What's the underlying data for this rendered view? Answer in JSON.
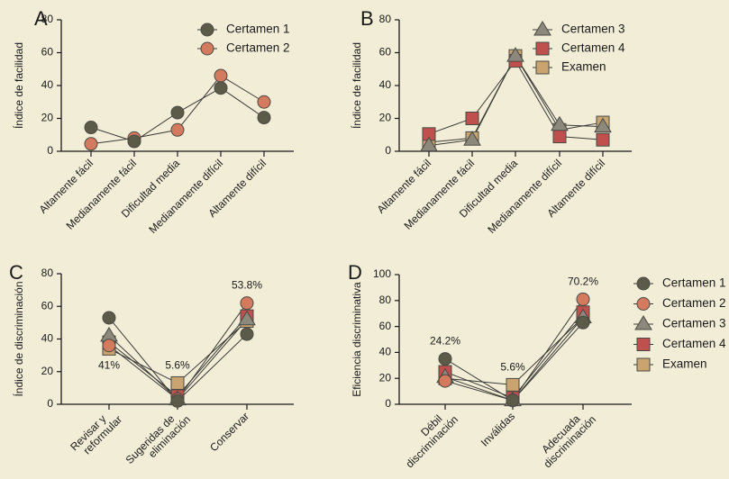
{
  "colors": {
    "background": "#F2EDD7",
    "axis": "#1a1a1a",
    "line": "#3a3a36",
    "Certamen 1": "#5C5A48",
    "Certamen 2": "#D47A5E",
    "Certamen 3": "#8C887C",
    "Certamen 4": "#C0504D",
    "Examen": "#C9A46E"
  },
  "markers": {
    "Certamen 1": "circle",
    "Certamen 2": "circle",
    "Certamen 3": "triangle",
    "Certamen 4": "square",
    "Examen": "square"
  },
  "chart_data": [
    {
      "panel": "A",
      "type": "line",
      "title": "",
      "xlabel": "",
      "ylabel": "Índice de facilidad",
      "ylim": [
        0,
        80
      ],
      "yticks": [
        0,
        20,
        40,
        60,
        80
      ],
      "grid": false,
      "legend": "top-right",
      "categories": [
        "Altamente fácil",
        "Medianamente fácil",
        "Dificultad media",
        "Medianamente difícil",
        "Altamente difícil"
      ],
      "series": [
        {
          "name": "Certamen 1",
          "values": [
            14.5,
            6,
            23.5,
            38.5,
            20.5
          ]
        },
        {
          "name": "Certamen 2",
          "values": [
            4.5,
            8,
            13,
            46,
            30
          ]
        }
      ],
      "annotations": []
    },
    {
      "panel": "B",
      "type": "line",
      "title": "",
      "xlabel": "",
      "ylabel": "Índice de facilidad",
      "ylim": [
        0,
        80
      ],
      "yticks": [
        0,
        20,
        40,
        60,
        80
      ],
      "grid": false,
      "legend": "top-right",
      "categories": [
        "Altamente fácil",
        "Medianamente fácil",
        "Dificultad media",
        "Medianamente difícil",
        "Altamente difícil"
      ],
      "series": [
        {
          "name": "Certamen 3",
          "values": [
            3.5,
            7,
            58,
            16,
            15
          ]
        },
        {
          "name": "Certamen 4",
          "values": [
            10.5,
            20,
            55,
            9,
            7
          ]
        },
        {
          "name": "Examen",
          "values": [
            5.5,
            8,
            58,
            13,
            17.5
          ]
        }
      ],
      "annotations": []
    },
    {
      "panel": "C",
      "type": "line",
      "title": "",
      "xlabel": "",
      "ylabel": "Índice de discriminación",
      "ylim": [
        0,
        80
      ],
      "yticks": [
        0,
        20,
        40,
        60,
        80
      ],
      "grid": false,
      "legend": "none",
      "categories": [
        "Revisar y\nreformular",
        "Sugeridas de\neliminación",
        "Conservar"
      ],
      "series": [
        {
          "name": "Certamen 1",
          "values": [
            53,
            2,
            43
          ]
        },
        {
          "name": "Certamen 2",
          "values": [
            36,
            3,
            62
          ]
        },
        {
          "name": "Certamen 3",
          "values": [
            42,
            3,
            52
          ]
        },
        {
          "name": "Certamen 4",
          "values": [
            38,
            5,
            54
          ]
        },
        {
          "name": "Examen",
          "values": [
            34,
            13,
            51
          ]
        }
      ],
      "annotations": [
        {
          "category": 0,
          "text": "41%",
          "position": "below"
        },
        {
          "category": 1,
          "text": "5.6%",
          "position": "above"
        },
        {
          "category": 2,
          "text": "53.8%",
          "position": "above"
        }
      ]
    },
    {
      "panel": "D",
      "type": "line",
      "title": "",
      "xlabel": "",
      "ylabel": "Eficiencia discriminativa",
      "ylim": [
        0,
        100
      ],
      "yticks": [
        0,
        20,
        40,
        60,
        80,
        100
      ],
      "grid": false,
      "legend": "right",
      "categories": [
        "Débil\ndiscriminación",
        "Inválidas",
        "Adecuada\ndiscriminación"
      ],
      "series": [
        {
          "name": "Certamen 1",
          "values": [
            35,
            3,
            63
          ]
        },
        {
          "name": "Certamen 2",
          "values": [
            18,
            3,
            81
          ]
        },
        {
          "name": "Certamen 3",
          "values": [
            21,
            3,
            67
          ]
        },
        {
          "name": "Certamen 4",
          "values": [
            25,
            5,
            71
          ]
        },
        {
          "name": "Examen",
          "values": [
            20,
            15,
            67
          ]
        }
      ],
      "annotations": [
        {
          "category": 0,
          "text": "24.2%",
          "position": "above"
        },
        {
          "category": 1,
          "text": "5.6%",
          "position": "above"
        },
        {
          "category": 2,
          "text": "70.2%",
          "position": "above"
        }
      ]
    }
  ]
}
